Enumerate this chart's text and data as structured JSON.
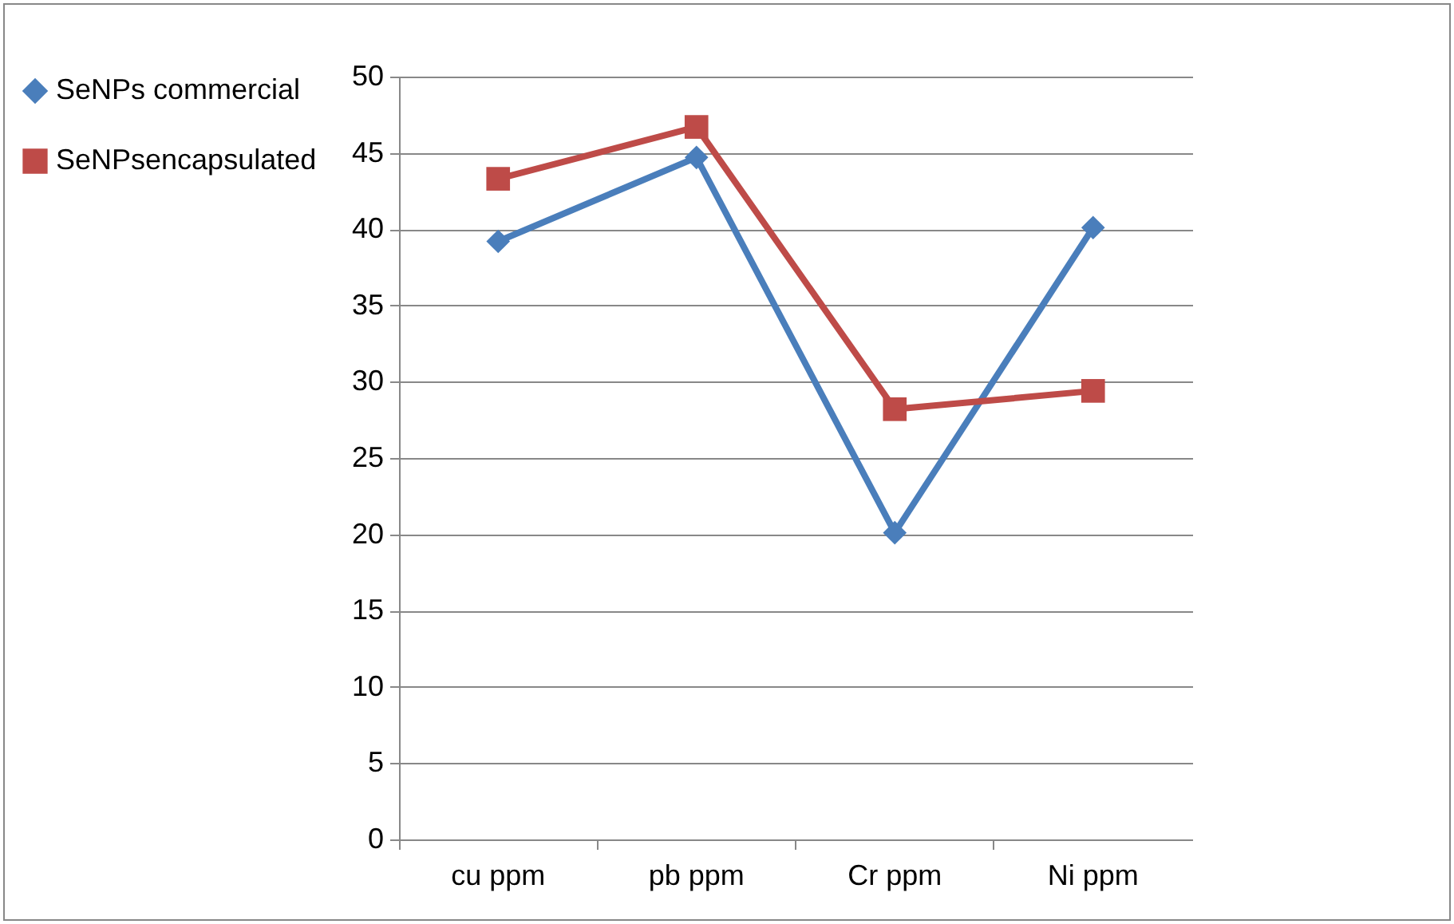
{
  "chart_data": {
    "type": "line",
    "categories": [
      "cu ppm",
      "pb ppm",
      "Cr ppm",
      "Ni ppm"
    ],
    "series": [
      {
        "name": "SeNPs commercial",
        "color": "#4a7ebb",
        "marker": "diamond",
        "values": [
          39.2,
          44.7,
          20.1,
          40.1
        ]
      },
      {
        "name": "SeNPsencapsulated",
        "color": "#be4b48",
        "marker": "square",
        "values": [
          43.3,
          46.7,
          28.2,
          29.4
        ]
      }
    ],
    "ylim": [
      0,
      50
    ],
    "yticks": [
      0,
      5,
      10,
      15,
      20,
      25,
      30,
      35,
      40,
      45,
      50
    ],
    "grid": "y",
    "legend": "left"
  }
}
